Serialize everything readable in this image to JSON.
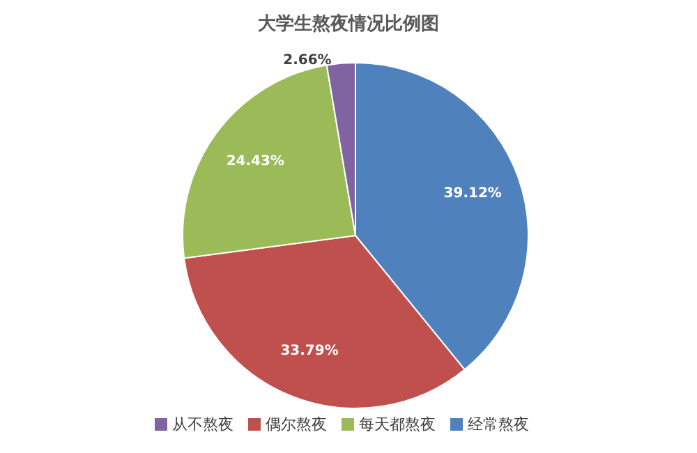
{
  "chart_data": {
    "type": "pie",
    "title": "大学生熬夜情况比例图",
    "categories": [
      "经常熬夜",
      "偶尔熬夜",
      "每天都熬夜",
      "从不熬夜"
    ],
    "values": [
      39.12,
      33.79,
      24.43,
      2.66
    ],
    "colors": [
      "#4f81bd",
      "#c0504d",
      "#9bbb59",
      "#8064a2"
    ],
    "value_labels": [
      "39.12%",
      "33.79%",
      "24.43%",
      "2.66%"
    ],
    "legend": "bottom"
  }
}
